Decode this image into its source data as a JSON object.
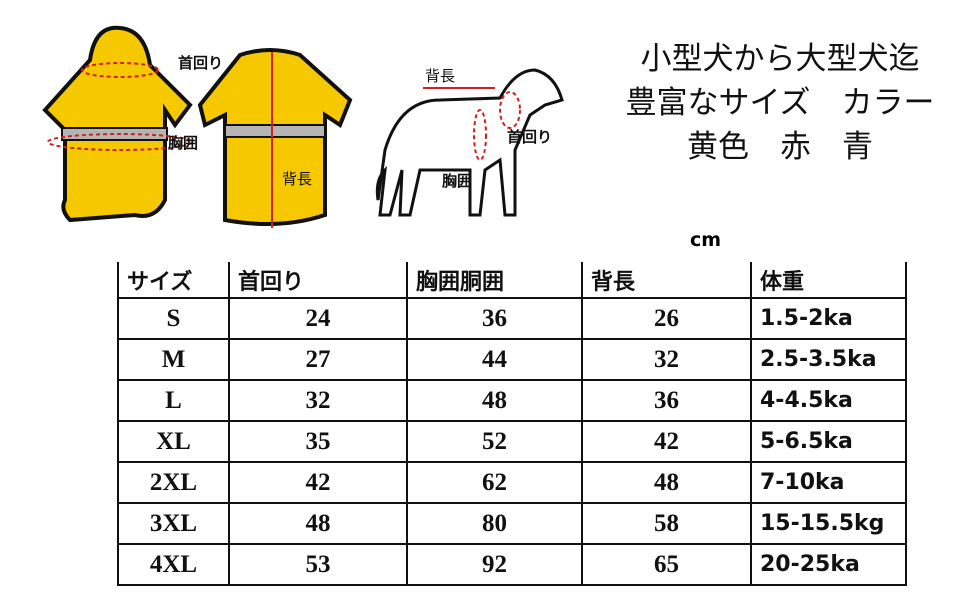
{
  "headline": [
    "小型犬から大型犬迄",
    "豊富なサイズ　カラー",
    "黄色　赤　青"
  ],
  "illustration_labels": {
    "neck": "首回り",
    "chest": "胸囲",
    "back": "背長",
    "dog_back": "背長",
    "dog_neck": "首回り",
    "dog_chest": "胸囲"
  },
  "unit": "cm",
  "table": {
    "headers": [
      "サイズ",
      "首回り",
      "胸囲胴囲",
      "背長",
      "体重"
    ],
    "rows": [
      [
        "S",
        "24",
        "36",
        "26",
        "1.5-2ka"
      ],
      [
        "M",
        "27",
        "44",
        "32",
        "2.5-3.5ka"
      ],
      [
        "L",
        "32",
        "48",
        "36",
        "4-4.5ka"
      ],
      [
        "XL",
        "35",
        "52",
        "42",
        "5-6.5ka"
      ],
      [
        "2XL",
        "42",
        "62",
        "48",
        "7-10ka"
      ],
      [
        "3XL",
        "48",
        "80",
        "58",
        "15-15.5kg"
      ],
      [
        "4XL",
        "53",
        "92",
        "65",
        "20-25ka"
      ]
    ]
  },
  "colors": {
    "coat": "#f5c800",
    "reflective": "#b0b0b0",
    "measure": "#d02020"
  }
}
